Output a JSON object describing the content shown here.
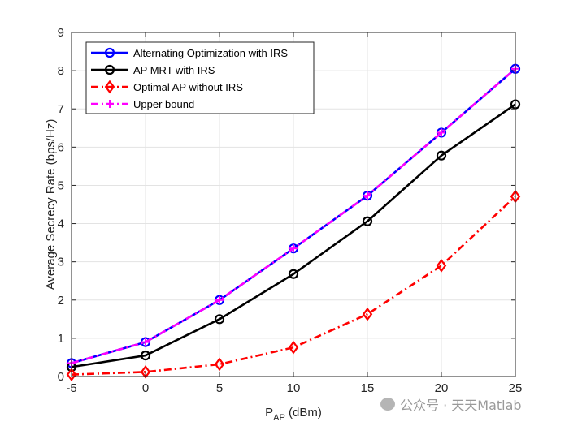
{
  "chart_data": {
    "type": "line",
    "title": "",
    "xlabel": {
      "main": "P",
      "sub": "AP",
      "suffix": " (dBm)"
    },
    "ylabel": "Average Secrecy Rate (bps/Hz)",
    "x": [
      -5,
      0,
      5,
      10,
      15,
      20,
      25
    ],
    "xlim": [
      -5,
      25
    ],
    "ylim": [
      0,
      9
    ],
    "xticks": [
      -5,
      0,
      5,
      10,
      15,
      20,
      25
    ],
    "yticks": [
      0,
      1,
      2,
      3,
      4,
      5,
      6,
      7,
      8,
      9
    ],
    "grid": true,
    "legend_position": "top-left",
    "series": [
      {
        "name": "Alternating Optimization with IRS",
        "values": [
          0.35,
          0.9,
          2.0,
          3.35,
          4.73,
          6.38,
          8.05
        ],
        "color": "#0000ff",
        "marker": "circle",
        "dash": "solid"
      },
      {
        "name": "AP MRT with IRS",
        "values": [
          0.25,
          0.55,
          1.5,
          2.68,
          4.06,
          5.78,
          7.12
        ],
        "color": "#000000",
        "marker": "circle",
        "dash": "solid"
      },
      {
        "name": "Optimal AP without IRS",
        "values": [
          0.05,
          0.12,
          0.32,
          0.76,
          1.63,
          2.9,
          4.71
        ],
        "color": "#ff0000",
        "marker": "diamond",
        "dash": "dashdot"
      },
      {
        "name": "Upper bound",
        "values": [
          0.35,
          0.9,
          2.0,
          3.35,
          4.73,
          6.38,
          8.05
        ],
        "color": "#ff00ff",
        "marker": "plus",
        "dash": "dashdot"
      }
    ]
  },
  "watermark": {
    "text": "公众号 · 天天Matlab",
    "icon": "wechat-icon"
  }
}
